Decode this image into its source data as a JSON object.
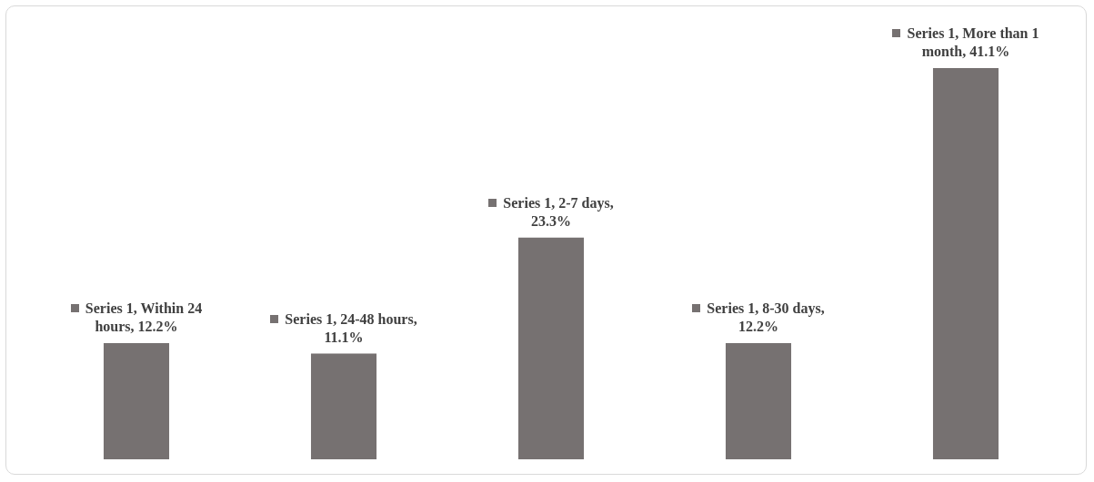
{
  "chart_data": {
    "type": "bar",
    "categories": [
      null,
      null,
      null,
      null,
      null
    ],
    "series": [
      {
        "color": "#767171",
        "values": [
          12.2,
          11.1,
          23.3,
          12.2,
          41.1
        ],
        "value_labels": [
          "Series 1, Within 24 hours, 12.2%",
          "Series 1, 24-48 hours, 11.1%",
          "Series 1, 2-7 days, 23.3%",
          "Series 1, 8-30 days, 12.2%",
          "Series 1, More than 1 month, 41.1%"
        ]
      }
    ],
    "legend": false
  }
}
